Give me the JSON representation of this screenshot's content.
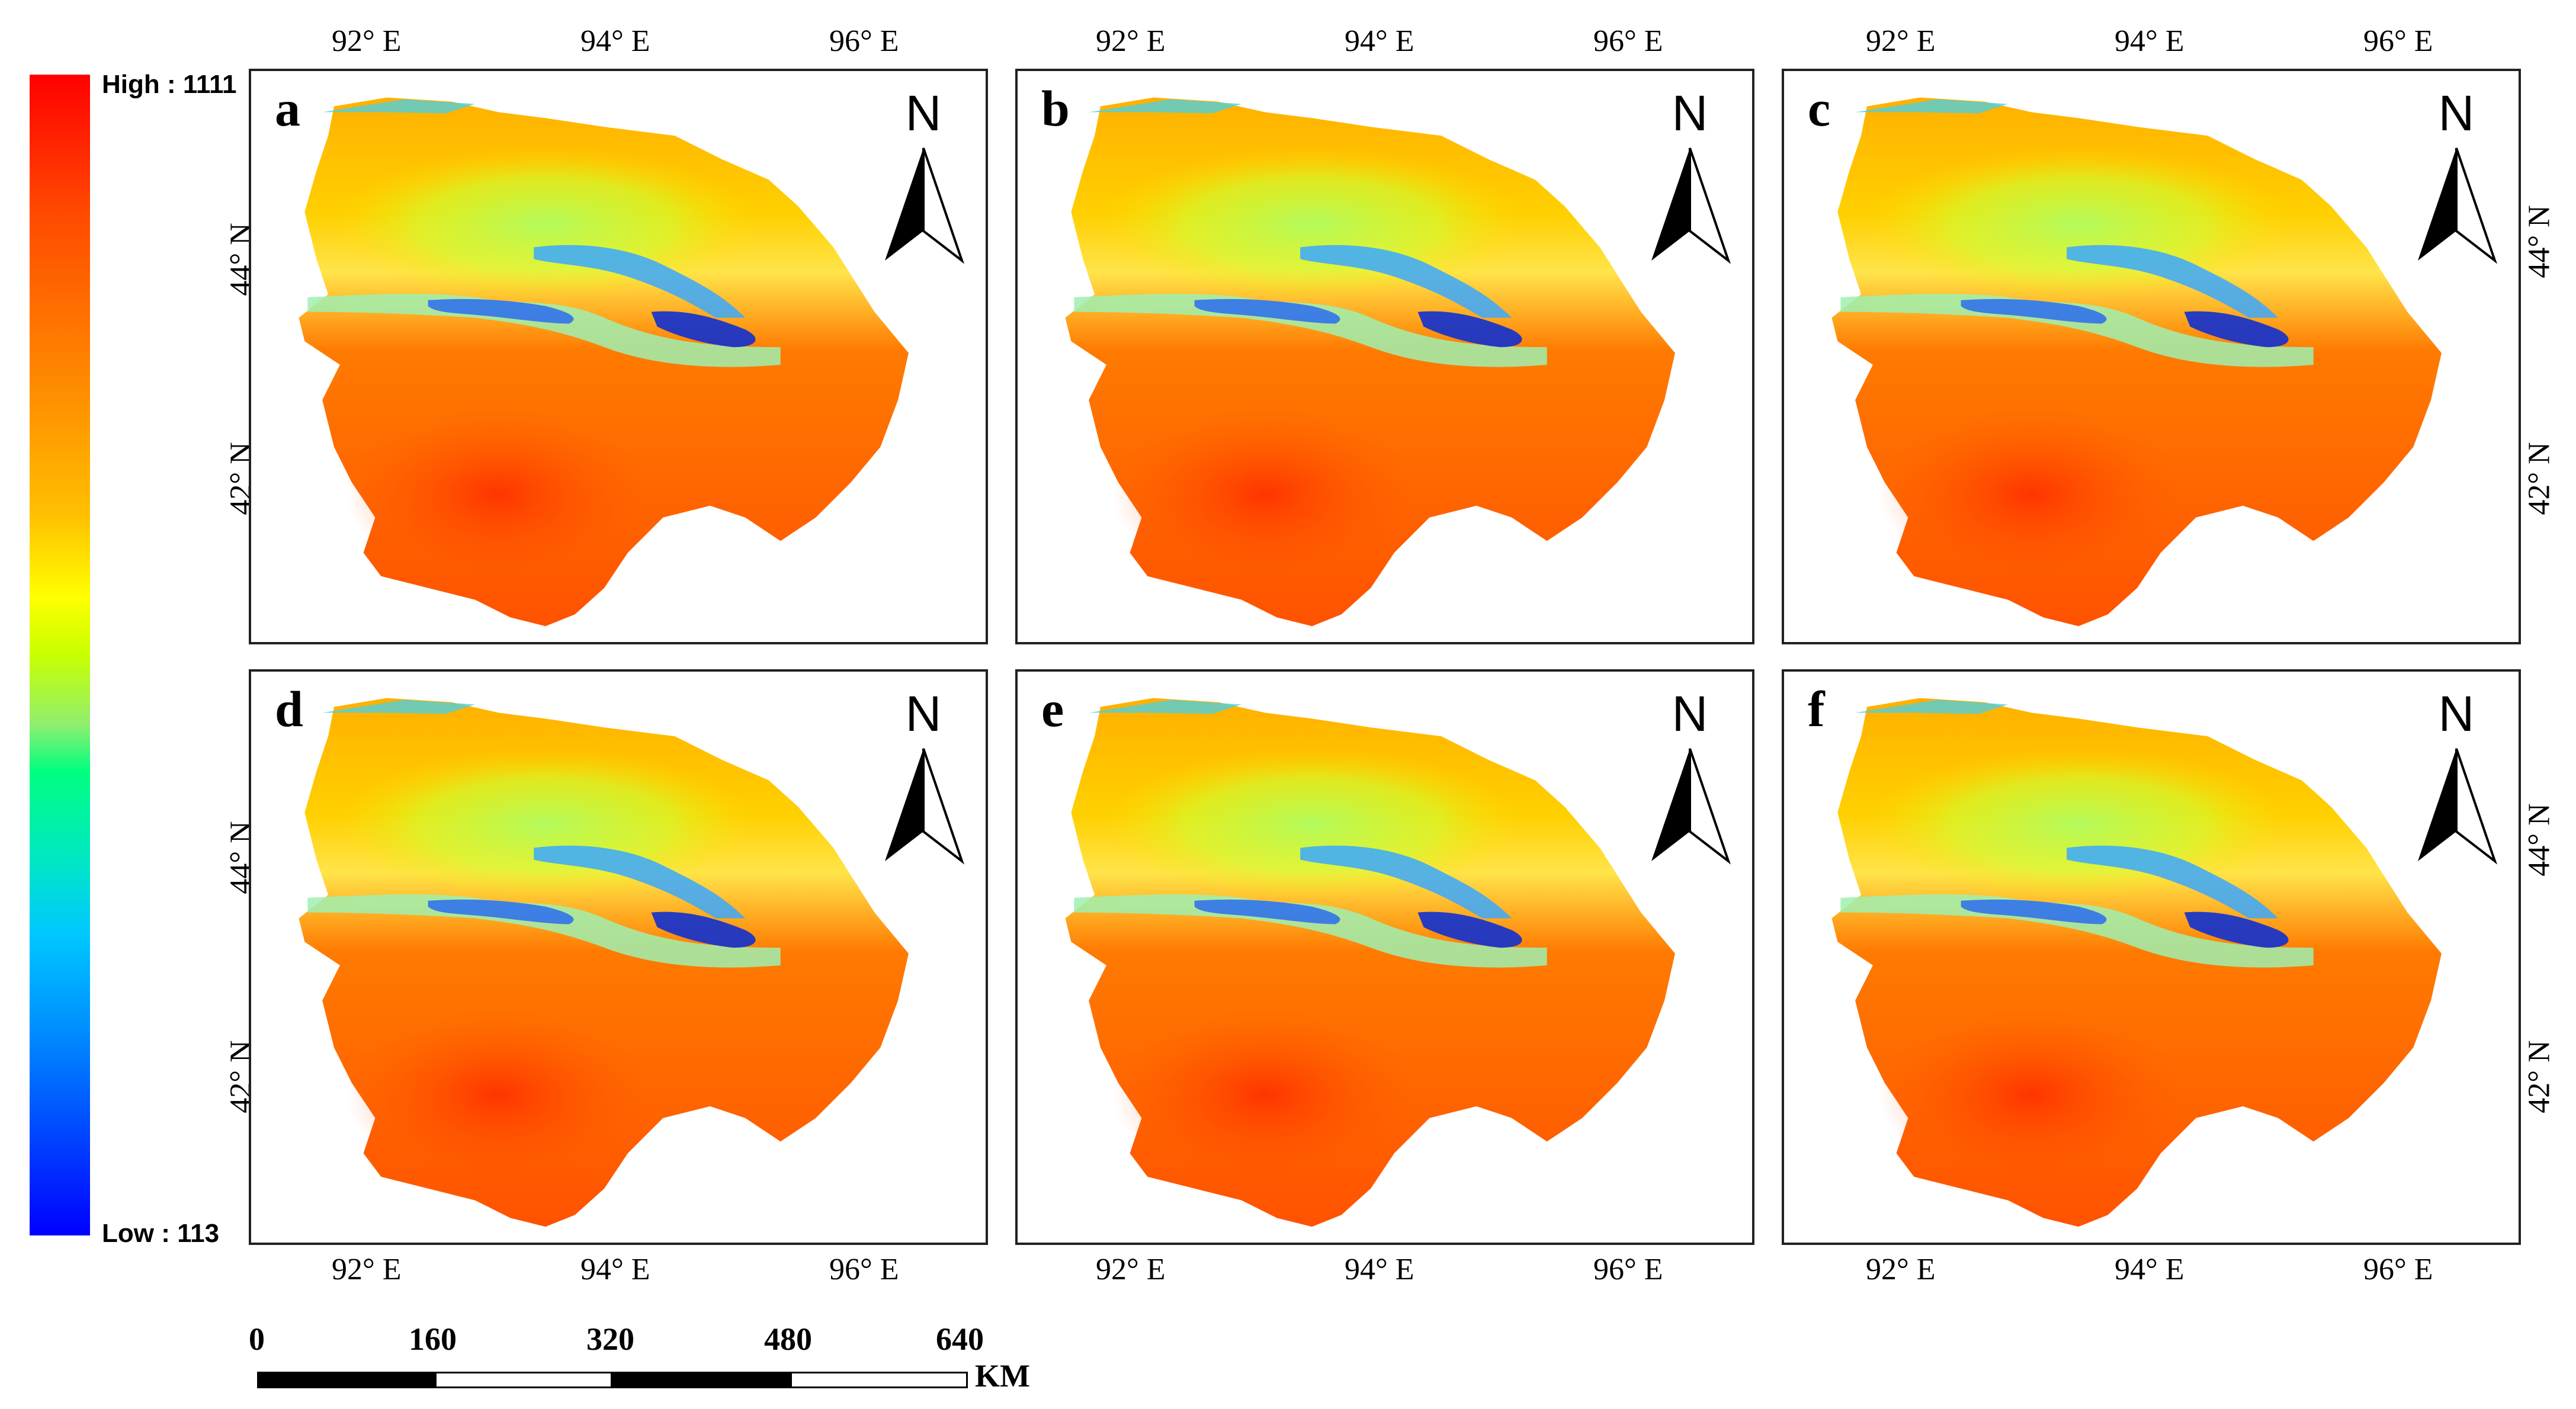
{
  "legend": {
    "high_label": "High : 1111",
    "low_label": "Low : 113",
    "colors": [
      "#ff0000",
      "#ff8c00",
      "#ffff00",
      "#90ee70",
      "#00c8ff",
      "#0000ff"
    ]
  },
  "panels": [
    {
      "letter": "a",
      "north": "N"
    },
    {
      "letter": "b",
      "north": "N"
    },
    {
      "letter": "c",
      "north": "N"
    },
    {
      "letter": "d",
      "north": "N"
    },
    {
      "letter": "e",
      "north": "N"
    },
    {
      "letter": "f",
      "north": "N"
    }
  ],
  "axes": {
    "lon_labels": [
      "92° E",
      "94° E",
      "96° E"
    ],
    "lat_labels": [
      "44° N",
      "42° N"
    ]
  },
  "scale_bar": {
    "ticks": [
      "0",
      "160",
      "320",
      "480",
      "640"
    ],
    "unit": "KM"
  }
}
